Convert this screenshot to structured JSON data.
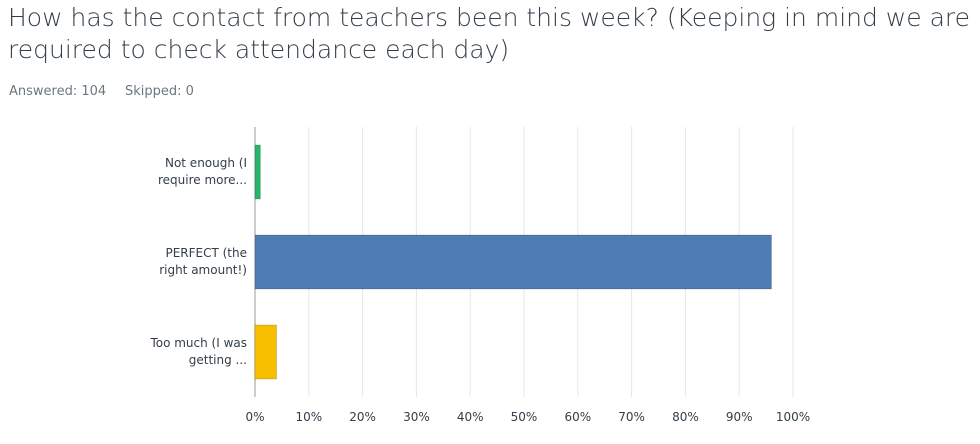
{
  "header": {
    "title": "How has the contact from teachers been this week? (Keeping in mind we are required to check attendance each day)",
    "answered": "Answered: 104",
    "skipped": "Skipped: 0"
  },
  "chart_data": {
    "type": "bar",
    "orientation": "horizontal",
    "categories": [
      "Not enough (I require more...",
      "PERFECT (the right amount!)",
      "Too much (I was getting ..."
    ],
    "values": [
      1,
      96,
      4
    ],
    "colors": [
      "#26b56b",
      "#507cb6",
      "#f8be00"
    ],
    "xlim": [
      0,
      100
    ],
    "xticks": [
      {
        "value": 0,
        "label": "0%"
      },
      {
        "value": 10,
        "label": "10%"
      },
      {
        "value": 20,
        "label": "20%"
      },
      {
        "value": 30,
        "label": "30%"
      },
      {
        "value": 40,
        "label": "40%"
      },
      {
        "value": 50,
        "label": "50%"
      },
      {
        "value": 60,
        "label": "60%"
      },
      {
        "value": 70,
        "label": "70%"
      },
      {
        "value": 80,
        "label": "80%"
      },
      {
        "value": 90,
        "label": "90%"
      },
      {
        "value": 100,
        "label": "100%"
      }
    ],
    "grid": true
  }
}
